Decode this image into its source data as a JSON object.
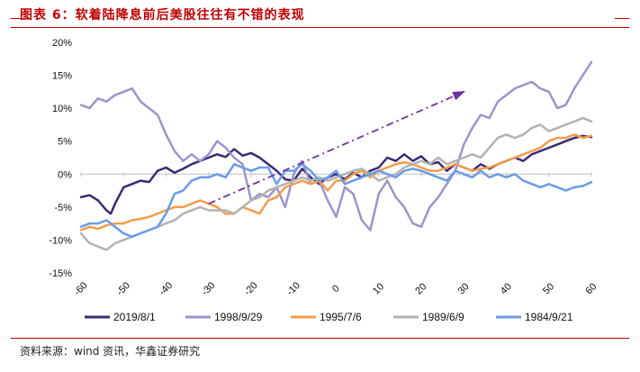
{
  "header": {
    "title": "图表 6：软着陆降息前后美股往往有不错的表现"
  },
  "footer": {
    "source": "资料来源：wind 资讯，华鑫证券研究"
  },
  "chart_data": {
    "type": "line",
    "xlabel": "",
    "ylabel": "",
    "xlim": [
      -60,
      60
    ],
    "ylim": [
      -15,
      20
    ],
    "x_ticks": [
      -60,
      -50,
      -40,
      -30,
      -20,
      -10,
      0,
      10,
      20,
      30,
      40,
      50,
      60
    ],
    "x_tick_labels": [
      "-60",
      "-50",
      "-40",
      "-30",
      "-20",
      "-10",
      "0",
      "10",
      "20",
      "30",
      "40",
      "50",
      "60"
    ],
    "y_ticks": [
      -15,
      -10,
      -5,
      0,
      5,
      10,
      15,
      20
    ],
    "y_tick_labels": [
      "-15%",
      "-10%",
      "-5%",
      "0%",
      "5%",
      "10%",
      "15%",
      "20%"
    ],
    "legend_position": "bottom",
    "annotation": {
      "type": "dash-dot-arrow",
      "color": "#7030a0",
      "from": [
        -30,
        -4.5
      ],
      "to": [
        30,
        12.5
      ]
    },
    "series": [
      {
        "name": "2019/8/1",
        "color": "#3d2a73",
        "x": [
          -60,
          -58,
          -56,
          -54,
          -53,
          -52,
          -50,
          -48,
          -46,
          -44,
          -42,
          -40,
          -38,
          -36,
          -34,
          -32,
          -30,
          -28,
          -26,
          -24,
          -22,
          -20,
          -18,
          -16,
          -14,
          -12,
          -10,
          -8,
          -6,
          -4,
          -2,
          0,
          2,
          4,
          6,
          8,
          10,
          12,
          14,
          16,
          18,
          20,
          22,
          24,
          26,
          28,
          30,
          32,
          34,
          36,
          38,
          40,
          42,
          44,
          46,
          48,
          50,
          52,
          54,
          56,
          58,
          60
        ],
        "values": [
          -3.5,
          -3.2,
          -4.0,
          -5.5,
          -6.0,
          -4.5,
          -2.0,
          -1.5,
          -1.0,
          -1.2,
          0.5,
          1.0,
          0.2,
          0.8,
          1.5,
          2.0,
          2.5,
          3.0,
          2.6,
          3.8,
          2.8,
          3.2,
          2.5,
          1.5,
          0.5,
          -0.8,
          -1.0,
          0.8,
          -0.5,
          -1.5,
          -0.5,
          0.0,
          -0.8,
          0.2,
          -0.5,
          0.5,
          1.0,
          2.5,
          2.0,
          3.0,
          2.0,
          2.7,
          1.5,
          1.8,
          0.5,
          1.5,
          1.0,
          0.5,
          1.5,
          0.8,
          1.5,
          2.0,
          2.5,
          2.0,
          3.0,
          3.5,
          4.0,
          4.5,
          5.0,
          5.5,
          5.8,
          5.6
        ]
      },
      {
        "name": "1998/9/29",
        "color": "#9d93cc",
        "x": [
          -60,
          -58,
          -56,
          -54,
          -52,
          -50,
          -48,
          -46,
          -44,
          -42,
          -40,
          -38,
          -36,
          -34,
          -32,
          -30,
          -28,
          -26,
          -24,
          -22,
          -20,
          -18,
          -16,
          -14,
          -12,
          -10,
          -8,
          -6,
          -4,
          -2,
          0,
          2,
          4,
          6,
          8,
          10,
          12,
          14,
          16,
          18,
          20,
          22,
          24,
          26,
          28,
          30,
          32,
          34,
          36,
          38,
          40,
          42,
          44,
          46,
          48,
          50,
          52,
          54,
          56,
          58,
          60
        ],
        "values": [
          10.5,
          10.0,
          11.5,
          11.0,
          12.0,
          12.5,
          13.0,
          11.0,
          10.0,
          9.0,
          6.0,
          3.5,
          2.0,
          3.0,
          2.0,
          3.0,
          5.0,
          4.0,
          2.5,
          1.5,
          -4.0,
          -3.0,
          -3.5,
          -2.0,
          -5.0,
          0.0,
          2.0,
          -1.5,
          -1.0,
          -4.0,
          -6.5,
          -2.0,
          -3.0,
          -7.0,
          -8.5,
          -3.0,
          -1.0,
          -3.5,
          -5.0,
          -7.5,
          -8.0,
          -5.0,
          -3.5,
          -1.5,
          0.5,
          4.5,
          7.0,
          9.0,
          8.5,
          11.0,
          12.0,
          13.0,
          13.5,
          14.0,
          13.0,
          12.5,
          10.0,
          10.5,
          13.0,
          15.0,
          17.0
        ]
      },
      {
        "name": "1995/7/6",
        "color": "#f39c4a",
        "x": [
          -60,
          -58,
          -56,
          -54,
          -52,
          -50,
          -48,
          -46,
          -44,
          -42,
          -40,
          -38,
          -36,
          -34,
          -32,
          -30,
          -28,
          -26,
          -24,
          -22,
          -20,
          -18,
          -16,
          -14,
          -12,
          -10,
          -8,
          -6,
          -4,
          -2,
          0,
          2,
          4,
          6,
          8,
          10,
          12,
          14,
          16,
          18,
          20,
          22,
          24,
          26,
          28,
          30,
          32,
          34,
          36,
          38,
          40,
          42,
          44,
          46,
          48,
          50,
          52,
          54,
          56,
          58,
          60
        ],
        "values": [
          -8.5,
          -8.0,
          -8.3,
          -7.8,
          -7.5,
          -7.5,
          -7.0,
          -6.8,
          -6.5,
          -6.0,
          -5.5,
          -5.0,
          -5.0,
          -4.5,
          -4.0,
          -4.5,
          -5.0,
          -6.0,
          -6.0,
          -5.0,
          -5.5,
          -6.0,
          -4.0,
          -3.5,
          -2.0,
          -1.5,
          -1.0,
          -1.5,
          -1.0,
          -2.5,
          -1.0,
          -1.0,
          0.0,
          0.5,
          -0.5,
          0.5,
          1.0,
          1.5,
          1.8,
          1.5,
          1.0,
          0.5,
          0.5,
          1.0,
          1.5,
          1.0,
          0.5,
          0.8,
          1.0,
          1.5,
          2.0,
          2.5,
          3.0,
          3.5,
          4.0,
          5.0,
          5.5,
          5.5,
          6.0,
          5.5,
          5.8
        ]
      },
      {
        "name": "1989/6/9",
        "color": "#b3b3b3",
        "x": [
          -60,
          -58,
          -56,
          -54,
          -52,
          -50,
          -48,
          -46,
          -44,
          -42,
          -40,
          -38,
          -36,
          -34,
          -32,
          -30,
          -28,
          -26,
          -24,
          -22,
          -20,
          -18,
          -16,
          -14,
          -12,
          -10,
          -8,
          -6,
          -4,
          -2,
          0,
          2,
          4,
          6,
          8,
          10,
          12,
          14,
          16,
          18,
          20,
          22,
          24,
          26,
          28,
          30,
          32,
          34,
          36,
          38,
          40,
          42,
          44,
          46,
          48,
          50,
          52,
          54,
          56,
          58,
          60
        ],
        "values": [
          -9.0,
          -10.5,
          -11.0,
          -11.5,
          -10.5,
          -10.0,
          -9.5,
          -9.0,
          -8.5,
          -8.0,
          -7.5,
          -7.0,
          -6.0,
          -5.5,
          -5.0,
          -5.5,
          -5.5,
          -5.5,
          -6.0,
          -5.0,
          -4.0,
          -3.5,
          -2.5,
          -2.0,
          -1.5,
          -1.0,
          -0.5,
          -1.0,
          -0.5,
          -1.0,
          -0.5,
          0.0,
          0.5,
          0.8,
          0.0,
          -1.0,
          -0.5,
          0.0,
          1.0,
          1.5,
          2.0,
          1.5,
          2.5,
          1.5,
          2.0,
          2.5,
          3.0,
          2.5,
          4.0,
          5.5,
          6.0,
          5.5,
          6.0,
          7.0,
          7.5,
          6.5,
          7.0,
          7.5,
          8.0,
          8.5,
          8.0
        ]
      },
      {
        "name": "1984/9/21",
        "color": "#6a9ce8",
        "x": [
          -60,
          -58,
          -56,
          -54,
          -52,
          -50,
          -48,
          -46,
          -44,
          -42,
          -40,
          -38,
          -36,
          -34,
          -32,
          -30,
          -28,
          -26,
          -24,
          -22,
          -20,
          -18,
          -16,
          -14,
          -12,
          -10,
          -8,
          -6,
          -4,
          -2,
          0,
          2,
          4,
          6,
          8,
          10,
          12,
          14,
          16,
          18,
          20,
          22,
          24,
          26,
          28,
          30,
          32,
          34,
          36,
          38,
          40,
          42,
          44,
          46,
          48,
          50,
          52,
          54,
          56,
          58,
          60
        ],
        "values": [
          -8.0,
          -7.5,
          -7.5,
          -7.0,
          -8.0,
          -9.0,
          -9.5,
          -9.0,
          -8.5,
          -8.0,
          -6.0,
          -3.0,
          -2.5,
          -1.0,
          -0.5,
          -0.5,
          0.0,
          -0.5,
          1.5,
          1.0,
          0.5,
          1.0,
          1.0,
          -1.5,
          0.5,
          0.5,
          1.5,
          0.5,
          -1.0,
          -0.5,
          0.5,
          -1.5,
          -1.0,
          -0.5,
          0.0,
          0.5,
          0.0,
          -0.5,
          0.5,
          0.8,
          0.5,
          0.0,
          -0.5,
          -1.0,
          0.5,
          0.0,
          -0.5,
          0.5,
          -0.5,
          0.0,
          -0.5,
          0.0,
          -1.0,
          -1.5,
          -2.0,
          -1.5,
          -2.0,
          -2.5,
          -2.0,
          -1.8,
          -1.2
        ]
      }
    ]
  }
}
